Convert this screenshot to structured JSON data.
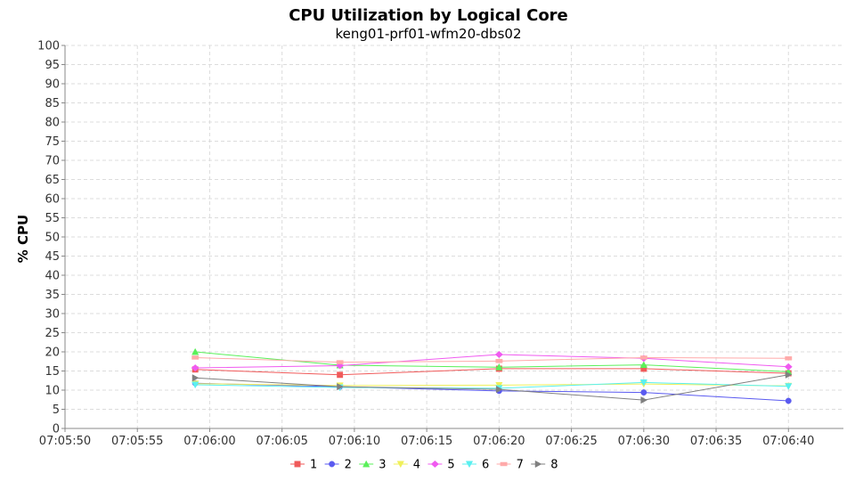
{
  "chart_data": {
    "type": "line",
    "title": "CPU Utilization by Logical Core",
    "subtitle": "keng01-prf01-wfm20-dbs02",
    "xlabel": "",
    "ylabel": "% CPU",
    "ylim": [
      0,
      100
    ],
    "y_ticks": [
      0,
      5,
      10,
      15,
      20,
      25,
      30,
      35,
      40,
      45,
      50,
      55,
      60,
      65,
      70,
      75,
      80,
      85,
      90,
      95,
      100
    ],
    "x_ticks": [
      "07:05:50",
      "07:05:55",
      "07:06:00",
      "07:06:05",
      "07:06:10",
      "07:06:15",
      "07:06:20",
      "07:06:25",
      "07:06:30",
      "07:06:35",
      "07:06:40"
    ],
    "x": [
      "07:05:59",
      "07:06:09",
      "07:06:20",
      "07:06:30",
      "07:06:40"
    ],
    "grid": true,
    "legend_position": "bottom",
    "series": [
      {
        "name": "1",
        "color": "#f05a5a",
        "marker": "square",
        "values": [
          15.4,
          14.0,
          15.6,
          15.6,
          14.4
        ]
      },
      {
        "name": "2",
        "color": "#5a5af0",
        "marker": "circle",
        "values": [
          11.8,
          10.9,
          9.8,
          9.4,
          7.2
        ]
      },
      {
        "name": "3",
        "color": "#5af05a",
        "marker": "triangle-up",
        "values": [
          20.0,
          16.5,
          16.0,
          16.6,
          14.8
        ]
      },
      {
        "name": "4",
        "color": "#f0f05a",
        "marker": "triangle-down",
        "values": [
          11.7,
          11.2,
          11.3,
          11.6,
          11.1
        ]
      },
      {
        "name": "5",
        "color": "#f05af0",
        "marker": "diamond",
        "values": [
          15.8,
          16.4,
          19.3,
          18.3,
          16.1
        ]
      },
      {
        "name": "6",
        "color": "#5af0f0",
        "marker": "triangle-down",
        "values": [
          11.4,
          10.7,
          10.5,
          12.0,
          11.0
        ]
      },
      {
        "name": "7",
        "color": "#ffaaaa",
        "marker": "rect",
        "values": [
          18.5,
          17.3,
          17.6,
          18.5,
          18.3
        ]
      },
      {
        "name": "8",
        "color": "#808080",
        "marker": "triangle-right",
        "values": [
          13.2,
          10.9,
          10.2,
          7.4,
          14.0
        ]
      }
    ]
  }
}
